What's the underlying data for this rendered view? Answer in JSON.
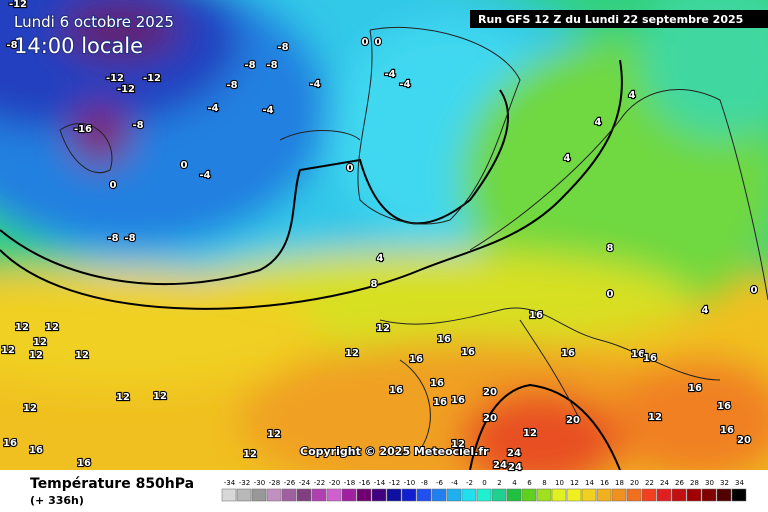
{
  "header": {
    "date": "Lundi 6 octobre 2025",
    "time": "14:00 locale",
    "run": "Run GFS 12 Z du Lundi 22 septembre 2025"
  },
  "copyright": "Copyright © 2025 Meteociel.fr",
  "legend": {
    "title": "Température 850hPa",
    "lead": "(+ 336h)",
    "values": [
      -34,
      -32,
      -30,
      -28,
      -26,
      -24,
      -22,
      -20,
      -18,
      -16,
      -14,
      -12,
      -10,
      -8,
      -6,
      -4,
      -2,
      0,
      2,
      4,
      6,
      8,
      10,
      12,
      14,
      16,
      18,
      20,
      22,
      24,
      26,
      28,
      30,
      32,
      34
    ],
    "colors": [
      "#d8d8d8",
      "#b8b8b8",
      "#989898",
      "#c090c0",
      "#a060a0",
      "#804080",
      "#b040b0",
      "#d060d0",
      "#a020a0",
      "#700070",
      "#400080",
      "#1010a0",
      "#1020d0",
      "#2050f0",
      "#2080f0",
      "#20b0f0",
      "#20e0f0",
      "#20f0d0",
      "#20d090",
      "#20c040",
      "#60d020",
      "#a0e020",
      "#e0f020",
      "#f0f020",
      "#f0d020",
      "#f0b020",
      "#f09020",
      "#f07020",
      "#f04020",
      "#e02020",
      "#c01010",
      "#a00000",
      "#800000",
      "#500000",
      "#000000"
    ]
  },
  "contour_labels": [
    -12,
    -8,
    -8,
    -8,
    -12,
    -12,
    -12,
    -8,
    -8,
    -4,
    -4,
    -4,
    -8,
    -16,
    0,
    -4,
    0,
    -8,
    -8,
    0,
    0,
    -4,
    -4,
    0,
    4,
    8,
    4,
    4,
    4,
    8,
    0,
    4,
    0,
    12,
    12,
    12,
    12,
    12,
    12,
    12,
    12,
    12,
    16,
    16,
    16,
    16,
    16,
    16,
    16,
    16,
    16,
    16,
    16,
    20,
    20,
    20,
    12,
    12,
    12,
    12,
    16,
    16,
    16,
    16,
    16,
    12,
    12,
    12,
    24,
    24,
    24,
    20,
    16
  ]
}
